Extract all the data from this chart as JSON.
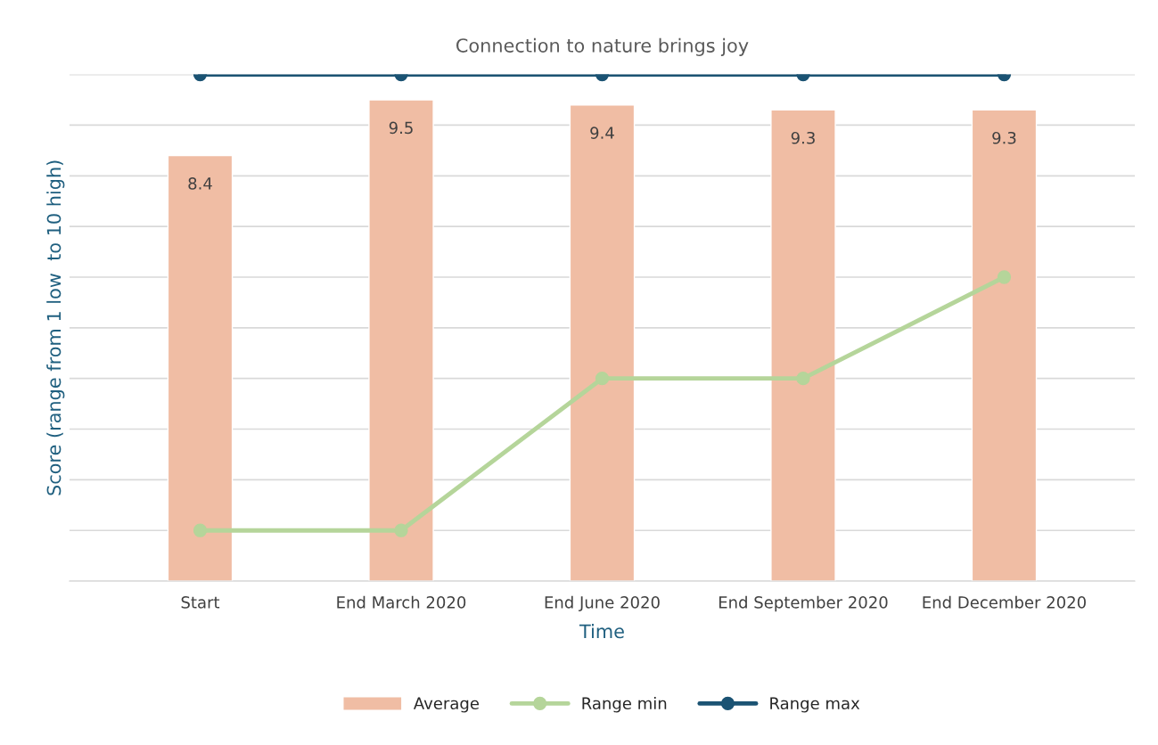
{
  "chart_data": {
    "type": "bar",
    "title": "Connection to nature brings joy",
    "xlabel": "Time",
    "ylabel": "Score (range from 1 low  to 10 high)",
    "categories": [
      "Start",
      "End March 2020",
      "End June 2020",
      "End September 2020",
      "End December 2020"
    ],
    "series": [
      {
        "name": "Average",
        "color": "#f0bda4",
        "values": [
          8.4,
          9.5,
          9.4,
          9.3,
          9.3
        ],
        "value_labels": [
          "8.4",
          "9.5",
          "9.4",
          "9.3",
          "9.3"
        ]
      },
      {
        "name": "Range min",
        "type": "line",
        "color": "#b5d59a",
        "values": [
          1,
          1,
          4,
          4,
          6
        ]
      },
      {
        "name": "Range max",
        "type": "line",
        "color": "#1b5373",
        "values": [
          10,
          10,
          10,
          10,
          10
        ]
      }
    ],
    "ylim": [
      0,
      10
    ],
    "yticks": [
      {
        "value": 0,
        "label": null
      },
      {
        "value": 1,
        "label": null
      },
      {
        "value": 2,
        "label": null
      },
      {
        "value": 3,
        "label": null
      },
      {
        "value": 4,
        "label": null
      },
      {
        "value": 5,
        "label": null
      },
      {
        "value": 6,
        "label": null
      },
      {
        "value": 7,
        "label": null
      },
      {
        "value": 8,
        "label": null
      },
      {
        "value": 9,
        "label": null
      },
      {
        "value": 10,
        "label": null
      }
    ],
    "grid": "y",
    "legend": "bottom",
    "marker": "circle",
    "line_style": "solid",
    "tick_labels": "x"
  }
}
